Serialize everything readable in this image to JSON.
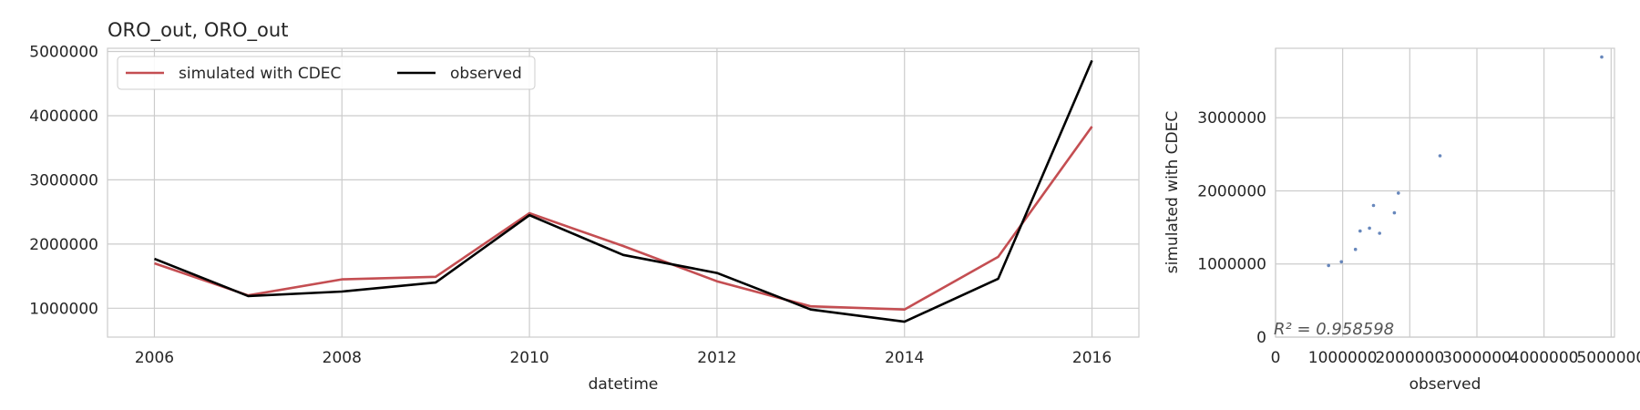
{
  "chart_data": [
    {
      "type": "line",
      "title": "ORO_out, ORO_out",
      "xlabel": "datetime",
      "ylabel": "",
      "xlim": [
        2005.5,
        2016.5
      ],
      "ylim": [
        550000,
        5050000
      ],
      "x": [
        2006,
        2007,
        2008,
        2009,
        2010,
        2011,
        2012,
        2013,
        2014,
        2015,
        2016
      ],
      "xticks": [
        "2006",
        "2008",
        "2010",
        "2012",
        "2014",
        "2016"
      ],
      "yticks": [
        "1000000",
        "2000000",
        "3000000",
        "4000000",
        "5000000"
      ],
      "grid": true,
      "legend_placement": "upper-left",
      "series": [
        {
          "name": "simulated with CDEC",
          "color": "#c44e52",
          "values": [
            1700000,
            1200000,
            1450000,
            1490000,
            2480000,
            1970000,
            1420000,
            1030000,
            980000,
            1800000,
            3830000
          ]
        },
        {
          "name": "observed",
          "color": "#000000",
          "values": [
            1770000,
            1190000,
            1260000,
            1400000,
            2450000,
            1830000,
            1550000,
            980000,
            790000,
            1460000,
            4860000
          ]
        }
      ]
    },
    {
      "type": "scatter",
      "xlabel": "observed",
      "ylabel": "simulated with CDEC",
      "xlim": [
        0,
        5050000
      ],
      "ylim": [
        0,
        3950000
      ],
      "xticks": [
        "0",
        "1000000",
        "2000000",
        "3000000",
        "4000000",
        "5000000"
      ],
      "yticks": [
        "0",
        "1000000",
        "2000000",
        "3000000"
      ],
      "grid": true,
      "color": "#4c72b0",
      "annotation": "R² = 0.958598",
      "points": [
        [
          790000,
          980000
        ],
        [
          980000,
          1030000
        ],
        [
          1190000,
          1200000
        ],
        [
          1260000,
          1450000
        ],
        [
          1400000,
          1490000
        ],
        [
          1460000,
          1800000
        ],
        [
          1550000,
          1420000
        ],
        [
          1770000,
          1700000
        ],
        [
          1830000,
          1970000
        ],
        [
          2450000,
          2480000
        ],
        [
          4860000,
          3830000
        ]
      ]
    }
  ]
}
